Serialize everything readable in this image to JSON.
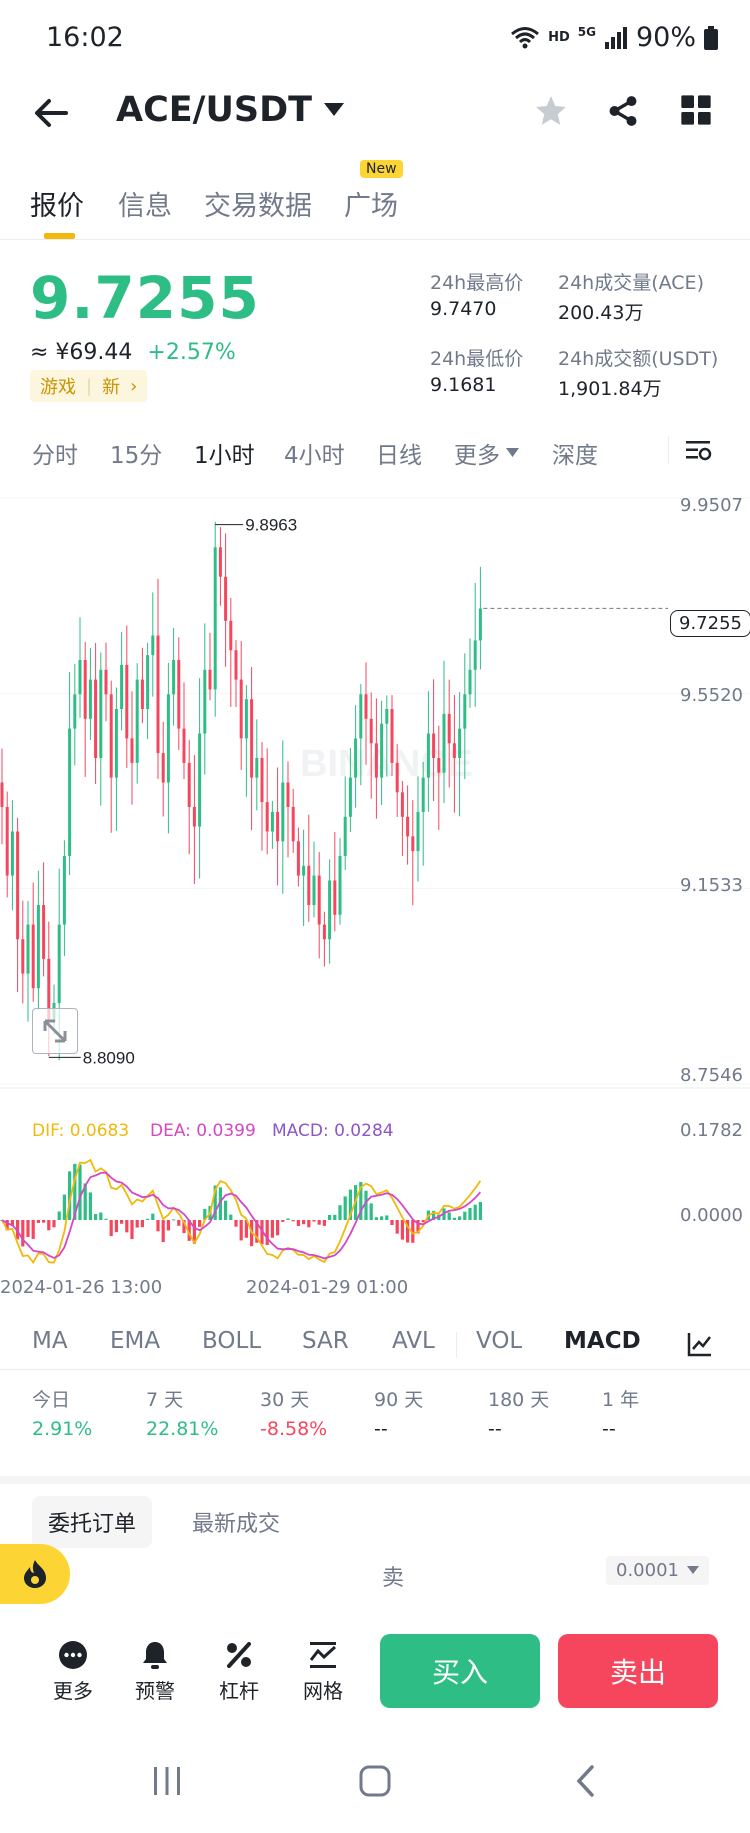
{
  "status_bar": {
    "time": "16:02",
    "network": "HD",
    "signal": "5G",
    "battery": "90%"
  },
  "header": {
    "pair": "ACE/USDT"
  },
  "tabs": [
    {
      "label": "报价",
      "active": true
    },
    {
      "label": "信息"
    },
    {
      "label": "交易数据"
    },
    {
      "label": "广场",
      "badge": "New"
    }
  ],
  "ticker": {
    "price": "9.7255",
    "cny": "≈ ¥69.44",
    "change": "+2.57%",
    "tag_category": "游戏",
    "tag_new": "新",
    "high_label": "24h最高价",
    "high": "9.7470",
    "vol_label": "24h成交量(ACE)",
    "vol": "200.43万",
    "low_label": "24h最低价",
    "low": "9.1681",
    "amount_label": "24h成交额(USDT)",
    "amount": "1,901.84万"
  },
  "intervals": [
    "分时",
    "15分",
    "1小时",
    "4小时",
    "日线",
    "更多",
    "深度"
  ],
  "active_interval": "1小时",
  "watermark": "BINANCE",
  "chart": {
    "y_ticks": [
      "9.9507",
      "9.5520",
      "9.1533",
      "8.7546"
    ],
    "high_marker": "9.8963",
    "low_marker": "8.8090",
    "current_price": "9.7255",
    "macd_ticks": [
      "0.1782",
      "0.0000"
    ],
    "dif": "DIF: 0.0683",
    "dea": "DEA: 0.0399",
    "macd": "MACD: 0.0284",
    "x_labels": [
      "2024-01-26 13:00",
      "2024-01-29 01:00"
    ],
    "colors": {
      "up": "#2ebd85",
      "down": "#f6465d",
      "dif": "#f0b90b",
      "dea": "#d447c5",
      "macd": "#8e55c6"
    }
  },
  "chart_data": {
    "type": "candlestick",
    "interval": "1h",
    "price_range": [
      8.7546,
      9.9507
    ],
    "high": 9.8963,
    "low": 8.809,
    "last": 9.7255,
    "x_labels": [
      "2024-01-26 13:00",
      "2024-01-29 01:00"
    ],
    "close": [
      9.32,
      9.18,
      9.27,
      9.05,
      8.98,
      9.08,
      8.95,
      9.12,
      9.01,
      8.88,
      8.92,
      9.08,
      9.22,
      9.48,
      9.55,
      9.62,
      9.5,
      9.58,
      9.42,
      9.6,
      9.55,
      9.38,
      9.52,
      9.61,
      9.46,
      9.41,
      9.58,
      9.52,
      9.63,
      9.67,
      9.43,
      9.37,
      9.55,
      9.62,
      9.48,
      9.41,
      9.32,
      9.28,
      9.47,
      9.6,
      9.56,
      9.85,
      9.79,
      9.7,
      9.64,
      9.58,
      9.46,
      9.54,
      9.38,
      9.42,
      9.33,
      9.27,
      9.31,
      9.25,
      9.37,
      9.32,
      9.25,
      9.18,
      9.2,
      9.12,
      9.18,
      9.08,
      9.05,
      9.17,
      9.1,
      9.22,
      9.3,
      9.38,
      9.46,
      9.55,
      9.5,
      9.45,
      9.38,
      9.49,
      9.52,
      9.41,
      9.35,
      9.3,
      9.26,
      9.23,
      9.31,
      9.38,
      9.47,
      9.42,
      9.39,
      9.51,
      9.45,
      9.42,
      9.48,
      9.55,
      9.6,
      9.66,
      9.725
    ],
    "indicators": [
      "MA",
      "EMA",
      "BOLL",
      "SAR",
      "AVL",
      "VOL",
      "MACD"
    ]
  },
  "indicators": [
    "MA",
    "EMA",
    "BOLL",
    "SAR",
    "AVL",
    "VOL",
    "MACD"
  ],
  "active_indicator": "MACD",
  "performance": [
    {
      "label": "今日",
      "value": "2.91%",
      "dir": "up"
    },
    {
      "label": "7 天",
      "value": "22.81%",
      "dir": "up"
    },
    {
      "label": "30 天",
      "value": "-8.58%",
      "dir": "down"
    },
    {
      "label": "90 天",
      "value": "--",
      "dir": "none"
    },
    {
      "label": "180 天",
      "value": "--",
      "dir": "none"
    },
    {
      "label": "1 年",
      "value": "--",
      "dir": "none"
    }
  ],
  "order_tabs": [
    {
      "label": "委托订单",
      "active": true
    },
    {
      "label": "最新成交"
    }
  ],
  "orderbook": {
    "side_label": "卖",
    "precision": "0.0001"
  },
  "bottom": {
    "items": [
      {
        "label": "更多"
      },
      {
        "label": "预警"
      },
      {
        "label": "杠杆"
      },
      {
        "label": "网格"
      }
    ],
    "buy": "买入",
    "sell": "卖出"
  }
}
